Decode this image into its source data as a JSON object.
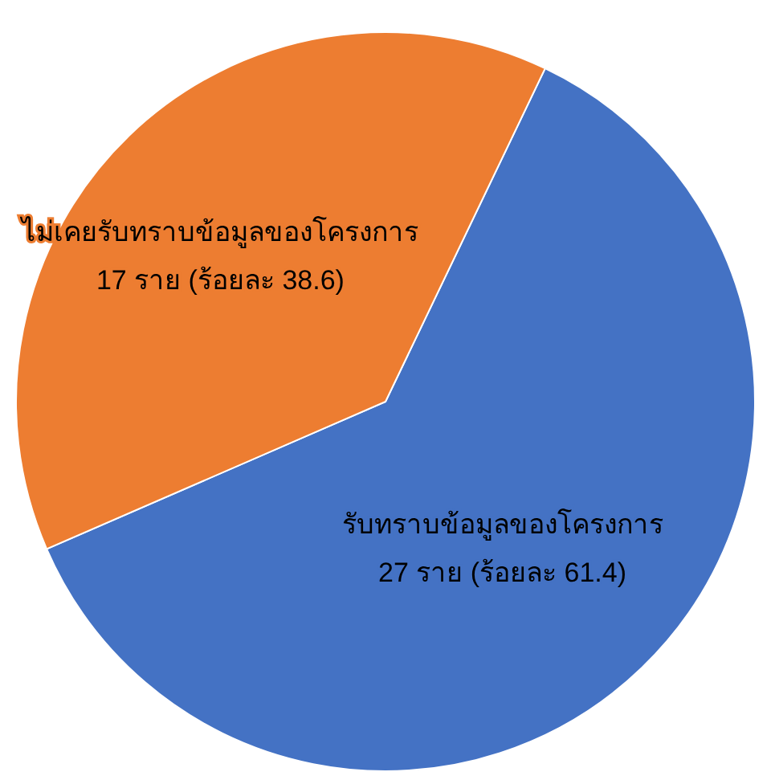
{
  "chart_data": {
    "type": "pie",
    "categories": [
      "รับทราบข้อมูลของโครงการ",
      "ไม่เคยรับทราบข้อมูลของโครงการ"
    ],
    "values": [
      27,
      17
    ],
    "value_labels": [
      "27 ราย (ร้อยละ 61.4)",
      "17 ราย (ร้อยละ 38.6)"
    ],
    "colors": [
      "#4472c4",
      "#ed7d31"
    ]
  }
}
